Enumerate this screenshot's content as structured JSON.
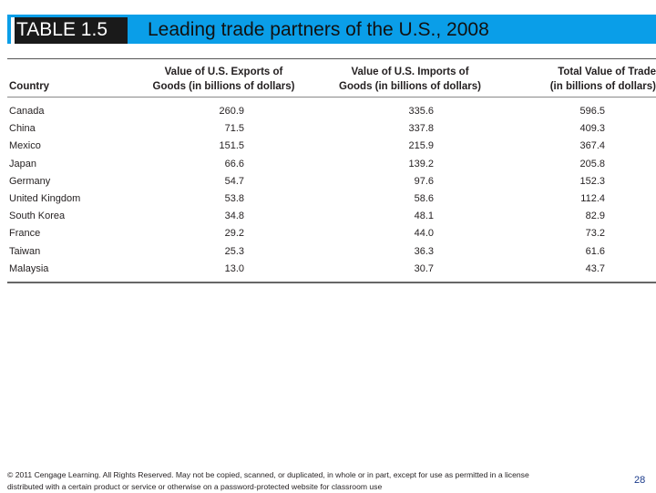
{
  "header": {
    "table_label": "TABLE 1.5",
    "title": "Leading trade partners of the U.S., 2008",
    "colors": {
      "bar": "#0a9ee8",
      "label_bg": "#1a1a1a"
    }
  },
  "table": {
    "columns": [
      {
        "line1": "",
        "line2": "Country"
      },
      {
        "line1": "Value of U.S. Exports of",
        "line2": "Goods (in billions of dollars)"
      },
      {
        "line1": "Value of U.S. Imports of",
        "line2": "Goods (in billions of dollars)"
      },
      {
        "line1": "Total Value of Trade",
        "line2": "(in billions of dollars)"
      }
    ],
    "rows": [
      {
        "country": "Canada",
        "exports": "260.9",
        "imports": "335.6",
        "total": "596.5"
      },
      {
        "country": "China",
        "exports": "71.5",
        "imports": "337.8",
        "total": "409.3"
      },
      {
        "country": "Mexico",
        "exports": "151.5",
        "imports": "215.9",
        "total": "367.4"
      },
      {
        "country": "Japan",
        "exports": "66.6",
        "imports": "139.2",
        "total": "205.8"
      },
      {
        "country": "Germany",
        "exports": "54.7",
        "imports": "97.6",
        "total": "152.3"
      },
      {
        "country": "United Kingdom",
        "exports": "53.8",
        "imports": "58.6",
        "total": "112.4"
      },
      {
        "country": "South Korea",
        "exports": "34.8",
        "imports": "48.1",
        "total": "82.9"
      },
      {
        "country": "France",
        "exports": "29.2",
        "imports": "44.0",
        "total": "73.2"
      },
      {
        "country": "Taiwan",
        "exports": "25.3",
        "imports": "36.3",
        "total": "61.6"
      },
      {
        "country": "Malaysia",
        "exports": "13.0",
        "imports": "30.7",
        "total": "43.7"
      }
    ]
  },
  "footer": {
    "copyright_line1": "© 2011 Cengage Learning. All Rights Reserved. May not be copied, scanned, or duplicated, in whole or in part, except for use as permitted in a license",
    "copyright_line2": "distributed with a certain product or service or otherwise on a password-protected website for classroom use",
    "page_number": "28"
  }
}
